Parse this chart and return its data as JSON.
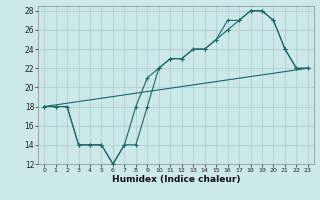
{
  "xlabel": "Humidex (Indice chaleur)",
  "bg_color": "#cce8e8",
  "grid_color": "#aacccc",
  "line_color": "#1a6666",
  "xlim": [
    -0.5,
    23.5
  ],
  "ylim": [
    12,
    28.5
  ],
  "xticks": [
    0,
    1,
    2,
    3,
    4,
    5,
    6,
    7,
    8,
    9,
    10,
    11,
    12,
    13,
    14,
    15,
    16,
    17,
    18,
    19,
    20,
    21,
    22,
    23
  ],
  "yticks": [
    12,
    14,
    16,
    18,
    20,
    22,
    24,
    26,
    28
  ],
  "line1_x": [
    0,
    1,
    2,
    3,
    4,
    5,
    6,
    7,
    8,
    9,
    10,
    11,
    12,
    13,
    14,
    15,
    16,
    17,
    18,
    19,
    20,
    21,
    22,
    23
  ],
  "line1_y": [
    18,
    18,
    18,
    14,
    14,
    14,
    12,
    14,
    18,
    21,
    22,
    23,
    23,
    24,
    24,
    25,
    26,
    27,
    28,
    28,
    27,
    24,
    22,
    22
  ],
  "line2_x": [
    0,
    1,
    2,
    3,
    4,
    5,
    6,
    7,
    8,
    9,
    10,
    11,
    12,
    13,
    14,
    15,
    16,
    17,
    18,
    19,
    20,
    21,
    22,
    23
  ],
  "line2_y": [
    18,
    18,
    18,
    14,
    14,
    14,
    12,
    14,
    14,
    18,
    22,
    23,
    23,
    24,
    24,
    25,
    27,
    27,
    28,
    28,
    27,
    24,
    22,
    22
  ],
  "line3_x": [
    0,
    23
  ],
  "line3_y": [
    18,
    22
  ]
}
